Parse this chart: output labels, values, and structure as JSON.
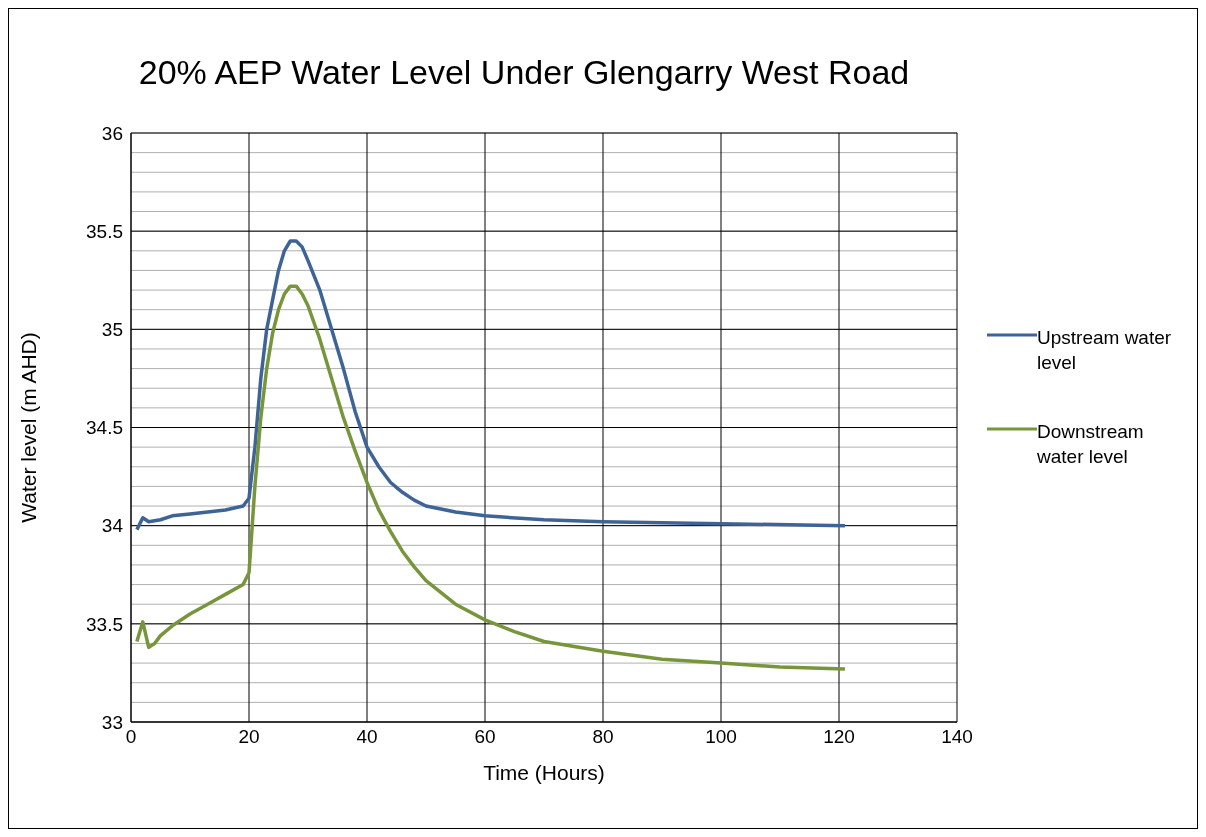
{
  "chart_data": {
    "type": "line",
    "title": "20% AEP Water Level Under Glengarry West Road",
    "xlabel": "Time (Hours)",
    "ylabel": "Water level (m AHD)",
    "xlim": [
      0,
      140
    ],
    "xticks": [
      0,
      20,
      40,
      60,
      80,
      100,
      120,
      140
    ],
    "ylim": [
      33,
      36
    ],
    "yticks": [
      33,
      {
        "value": 33.1,
        "label": null
      },
      {
        "value": 33.2,
        "label": null
      },
      {
        "value": 33.3,
        "label": null
      },
      {
        "value": 33.4,
        "label": null
      },
      33.5,
      {
        "value": 33.6,
        "label": null
      },
      {
        "value": 33.7,
        "label": null
      },
      {
        "value": 33.8,
        "label": null
      },
      {
        "value": 33.9,
        "label": null
      },
      34,
      {
        "value": 34.1,
        "label": null
      },
      {
        "value": 34.2,
        "label": null
      },
      {
        "value": 34.3,
        "label": null
      },
      {
        "value": 34.4,
        "label": null
      },
      34.5,
      {
        "value": 34.6,
        "label": null
      },
      {
        "value": 34.7,
        "label": null
      },
      {
        "value": 34.8,
        "label": null
      },
      {
        "value": 34.9,
        "label": null
      },
      35,
      {
        "value": 35.1,
        "label": null
      },
      {
        "value": 35.2,
        "label": null
      },
      {
        "value": 35.3,
        "label": null
      },
      {
        "value": 35.4,
        "label": null
      },
      35.5,
      {
        "value": 35.6,
        "label": null
      },
      {
        "value": 35.7,
        "label": null
      },
      {
        "value": 35.8,
        "label": null
      },
      {
        "value": 35.9,
        "label": null
      },
      36
    ],
    "grid": true,
    "legend": "right",
    "marker": "none",
    "line_style": "solid",
    "series": [
      {
        "name": "Upstream water level",
        "color": "#3e6497",
        "x": [
          1,
          2,
          3,
          5,
          7,
          10,
          13,
          16,
          19,
          20,
          21,
          22,
          23,
          24,
          25,
          26,
          27,
          28,
          29,
          30,
          32,
          34,
          36,
          38,
          40,
          42,
          44,
          46,
          48,
          50,
          55,
          60,
          70,
          80,
          100,
          121
        ],
        "values": [
          33.98,
          34.04,
          34.02,
          34.03,
          34.05,
          34.06,
          34.07,
          34.08,
          34.1,
          34.14,
          34.4,
          34.75,
          35.0,
          35.15,
          35.3,
          35.4,
          35.45,
          35.45,
          35.42,
          35.35,
          35.2,
          35.0,
          34.8,
          34.58,
          34.4,
          34.3,
          34.22,
          34.17,
          34.13,
          34.1,
          34.07,
          34.05,
          34.03,
          34.02,
          34.01,
          34.0
        ]
      },
      {
        "name": "Downstream water level",
        "color": "#77963c",
        "x": [
          1,
          2,
          3,
          4,
          5,
          7,
          10,
          13,
          16,
          19,
          20,
          21,
          22,
          23,
          24,
          25,
          26,
          27,
          28,
          29,
          30,
          32,
          34,
          36,
          38,
          40,
          42,
          44,
          46,
          48,
          50,
          55,
          60,
          65,
          70,
          80,
          90,
          100,
          110,
          121
        ],
        "values": [
          33.41,
          33.51,
          33.38,
          33.4,
          33.44,
          33.49,
          33.55,
          33.6,
          33.65,
          33.7,
          33.76,
          34.2,
          34.55,
          34.8,
          34.98,
          35.1,
          35.18,
          35.22,
          35.22,
          35.18,
          35.12,
          34.95,
          34.75,
          34.55,
          34.38,
          34.22,
          34.08,
          33.97,
          33.87,
          33.79,
          33.72,
          33.6,
          33.52,
          33.46,
          33.41,
          33.36,
          33.32,
          33.3,
          33.28,
          33.27
        ]
      }
    ]
  }
}
